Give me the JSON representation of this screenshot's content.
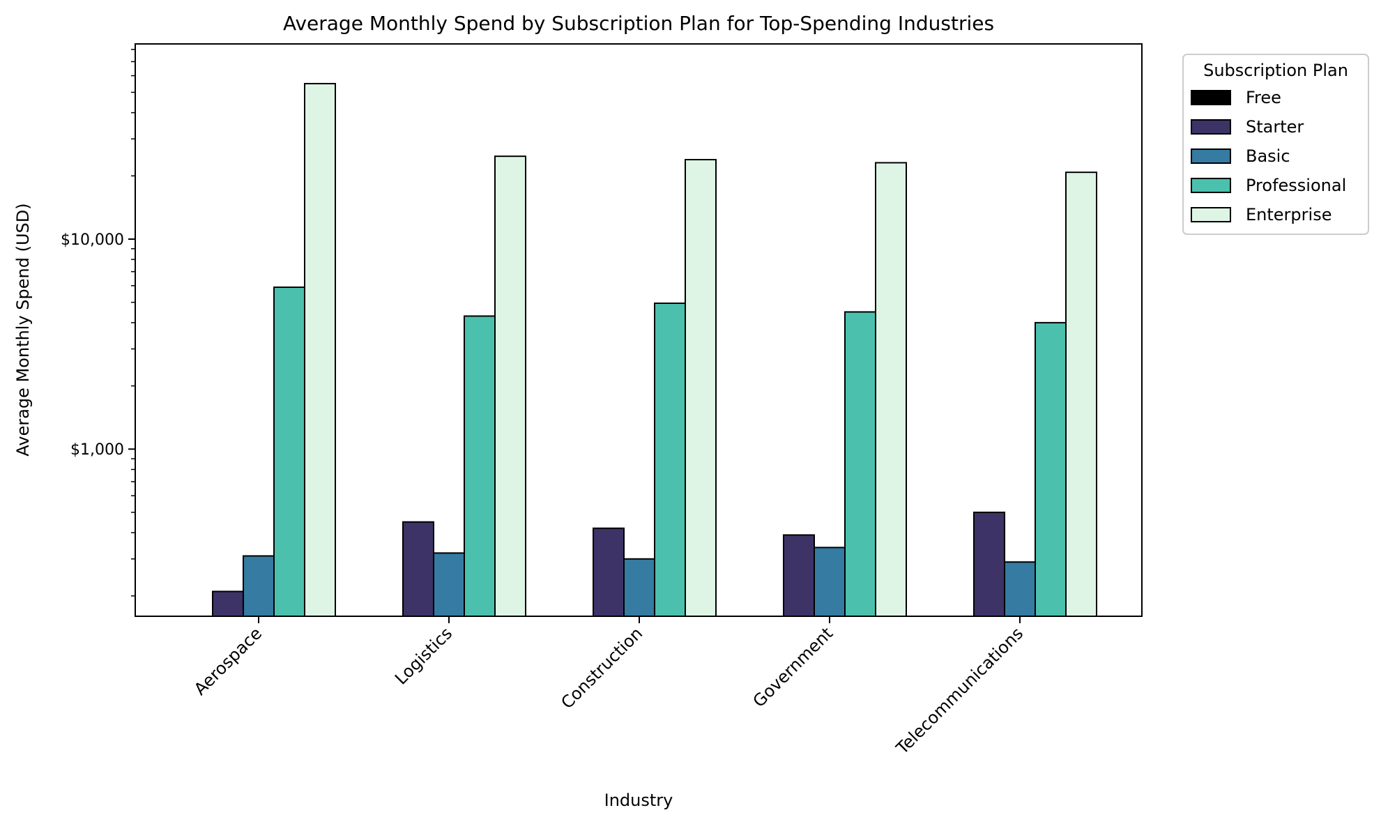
{
  "chart_data": {
    "type": "bar",
    "title": "Average Monthly Spend by Subscription Plan for Top-Spending Industries",
    "xlabel": "Industry",
    "ylabel": "Average Monthly Spend (USD)",
    "yscale": "log",
    "ylim": [
      160,
      85000
    ],
    "yticks": [
      {
        "value": 1000,
        "label": "$1,000"
      },
      {
        "value": 10000,
        "label": "$10,000"
      }
    ],
    "categories": [
      "Aerospace",
      "Logistics",
      "Construction",
      "Government",
      "Telecommunications"
    ],
    "series": [
      {
        "name": "Free",
        "color": "#000000",
        "values": [
          0,
          0,
          0,
          0,
          0
        ]
      },
      {
        "name": "Starter",
        "color": "#3d3366",
        "values": [
          210,
          450,
          420,
          390,
          500
        ]
      },
      {
        "name": "Basic",
        "color": "#357ba2",
        "values": [
          310,
          320,
          300,
          340,
          290
        ]
      },
      {
        "name": "Professional",
        "color": "#4bc1ad",
        "values": [
          5900,
          4300,
          4950,
          4500,
          4000
        ]
      },
      {
        "name": "Enterprise",
        "color": "#def5e6",
        "values": [
          55000,
          24800,
          23900,
          23100,
          20800
        ]
      }
    ],
    "legend": {
      "title": "Subscription Plan",
      "placement": "outside-top-right"
    }
  }
}
